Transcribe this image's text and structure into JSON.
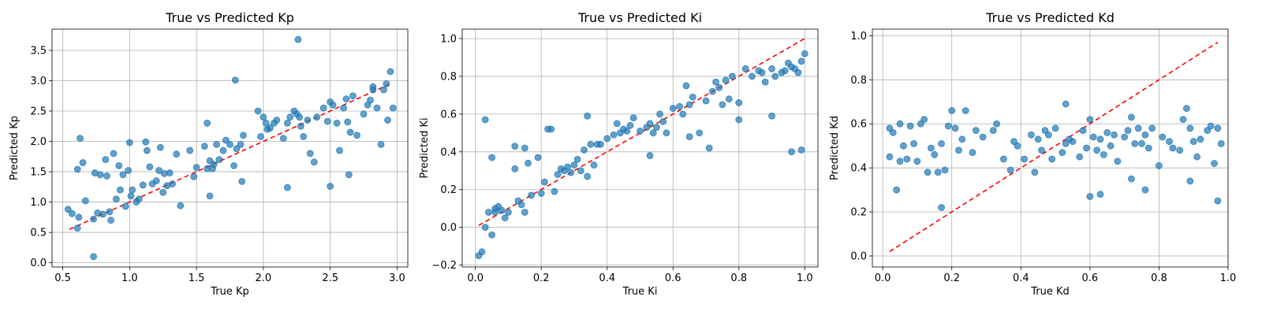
{
  "chart_data": [
    {
      "type": "scatter",
      "title": "True vs Predicted Kp",
      "xlabel": "True Kp",
      "ylabel": "Predicted Kp",
      "xlim": [
        0.42,
        3.08
      ],
      "ylim": [
        -0.07,
        3.85
      ],
      "xticks": [
        0.5,
        1.0,
        1.5,
        2.0,
        2.5,
        3.0
      ],
      "xtick_labels": [
        "0.5",
        "1.0",
        "1.5",
        "2.0",
        "2.5",
        "3.0"
      ],
      "yticks": [
        0.0,
        0.5,
        1.0,
        1.5,
        2.0,
        2.5,
        3.0,
        3.5
      ],
      "ytick_labels": [
        "0.0",
        "0.5",
        "1.0",
        "1.5",
        "2.0",
        "2.5",
        "3.0",
        "3.5"
      ],
      "grid": true,
      "reference_line": [
        [
          0.55,
          0.55
        ],
        [
          2.95,
          2.95
        ]
      ],
      "x": [
        0.54,
        0.57,
        0.61,
        0.62,
        0.63,
        0.65,
        0.67,
        0.73,
        0.74,
        0.76,
        0.78,
        0.8,
        0.82,
        0.83,
        0.85,
        0.86,
        0.88,
        0.9,
        0.92,
        0.93,
        0.95,
        0.97,
        0.99,
        1.0,
        1.01,
        1.02,
        1.05,
        1.07,
        1.1,
        1.12,
        1.13,
        1.15,
        1.17,
        1.2,
        1.22,
        1.23,
        1.25,
        1.26,
        1.28,
        1.3,
        1.32,
        1.35,
        1.38,
        1.45,
        1.48,
        1.5,
        1.56,
        1.58,
        1.6,
        1.62,
        1.63,
        1.65,
        1.67,
        1.7,
        1.72,
        1.75,
        1.78,
        1.8,
        1.83,
        1.85,
        1.96,
        1.98,
        2.0,
        2.02,
        2.03,
        2.05,
        2.08,
        2.1,
        2.15,
        2.18,
        2.2,
        2.23,
        2.25,
        2.27,
        2.28,
        2.3,
        2.33,
        2.35,
        2.38,
        2.4,
        2.45,
        2.48,
        2.5,
        2.52,
        2.55,
        2.57,
        2.6,
        2.62,
        2.63,
        2.65,
        2.67,
        2.7,
        2.75,
        2.78,
        2.8,
        2.82,
        2.85,
        2.88,
        2.9,
        2.92,
        2.93,
        2.95,
        2.97,
        2.82,
        2.64,
        1.6,
        2.26,
        1.79,
        0.61,
        1.58,
        2.5,
        2.18,
        1.84,
        0.73
      ],
      "y": [
        0.88,
        0.81,
        0.57,
        0.75,
        2.05,
        1.65,
        1.02,
        0.72,
        1.48,
        0.82,
        1.45,
        0.8,
        1.7,
        1.43,
        0.84,
        0.7,
        1.8,
        1.05,
        1.6,
        1.2,
        1.45,
        0.93,
        1.52,
        1.98,
        1.1,
        1.2,
        1.0,
        1.05,
        1.28,
        1.99,
        1.85,
        1.58,
        1.3,
        1.35,
        1.52,
        1.9,
        1.16,
        1.47,
        1.27,
        1.48,
        1.3,
        1.79,
        0.94,
        1.85,
        1.42,
        1.57,
        1.92,
        2.3,
        1.68,
        1.55,
        1.62,
        1.95,
        1.7,
        1.85,
        2.02,
        1.95,
        1.6,
        1.88,
        1.95,
        2.1,
        2.5,
        2.08,
        2.4,
        2.3,
        2.2,
        2.22,
        2.3,
        2.35,
        2.05,
        2.3,
        2.4,
        2.5,
        2.45,
        2.4,
        2.25,
        2.08,
        2.35,
        1.8,
        1.66,
        2.4,
        2.55,
        2.33,
        2.65,
        2.6,
        2.3,
        1.85,
        2.55,
        2.7,
        2.32,
        2.15,
        2.75,
        2.1,
        2.45,
        2.6,
        2.68,
        2.9,
        2.55,
        1.95,
        2.85,
        2.95,
        2.35,
        3.15,
        2.55,
        2.85,
        1.45,
        1.1,
        3.68,
        3.01,
        1.54,
        1.55,
        1.26,
        1.24,
        1.34,
        0.1
      ]
    },
    {
      "type": "scatter",
      "title": "True vs Predicted Ki",
      "xlabel": "True Ki",
      "ylabel": "Predicted Ki",
      "xlim": [
        -0.04,
        1.04
      ],
      "ylim": [
        -0.21,
        1.05
      ],
      "xticks": [
        0.0,
        0.2,
        0.4,
        0.6,
        0.8,
        1.0
      ],
      "xtick_labels": [
        "0.0",
        "0.2",
        "0.4",
        "0.6",
        "0.8",
        "1.0"
      ],
      "yticks": [
        -0.2,
        0.0,
        0.2,
        0.4,
        0.6,
        0.8,
        1.0
      ],
      "ytick_labels": [
        "−0.2",
        "0.0",
        "0.2",
        "0.4",
        "0.6",
        "0.8",
        "1.0"
      ],
      "grid": true,
      "reference_line": [
        [
          0.01,
          0.01
        ],
        [
          1.0,
          1.0
        ]
      ],
      "x": [
        0.01,
        0.02,
        0.03,
        0.04,
        0.05,
        0.06,
        0.06,
        0.07,
        0.08,
        0.09,
        0.1,
        0.12,
        0.13,
        0.14,
        0.15,
        0.16,
        0.17,
        0.19,
        0.2,
        0.21,
        0.22,
        0.24,
        0.25,
        0.26,
        0.27,
        0.28,
        0.29,
        0.3,
        0.31,
        0.32,
        0.33,
        0.34,
        0.35,
        0.36,
        0.37,
        0.38,
        0.4,
        0.42,
        0.43,
        0.44,
        0.45,
        0.46,
        0.47,
        0.48,
        0.5,
        0.52,
        0.53,
        0.54,
        0.55,
        0.56,
        0.57,
        0.58,
        0.6,
        0.62,
        0.63,
        0.64,
        0.65,
        0.66,
        0.68,
        0.7,
        0.72,
        0.73,
        0.74,
        0.75,
        0.76,
        0.77,
        0.78,
        0.8,
        0.82,
        0.84,
        0.86,
        0.87,
        0.88,
        0.9,
        0.91,
        0.93,
        0.94,
        0.95,
        0.96,
        0.97,
        0.98,
        0.99,
        1.0,
        0.96,
        0.99,
        0.9,
        0.03,
        0.05,
        0.12,
        0.15,
        0.23,
        0.34,
        0.53,
        0.65,
        0.71,
        0.8
      ],
      "y": [
        -0.15,
        -0.13,
        0.0,
        0.08,
        -0.04,
        0.08,
        0.1,
        0.11,
        0.09,
        0.05,
        0.08,
        0.31,
        0.14,
        0.12,
        0.08,
        0.34,
        0.17,
        0.37,
        0.18,
        0.24,
        0.52,
        0.19,
        0.28,
        0.31,
        0.3,
        0.32,
        0.29,
        0.33,
        0.36,
        0.3,
        0.41,
        0.27,
        0.44,
        0.33,
        0.44,
        0.44,
        0.47,
        0.49,
        0.55,
        0.5,
        0.52,
        0.51,
        0.54,
        0.58,
        0.51,
        0.53,
        0.55,
        0.5,
        0.53,
        0.6,
        0.56,
        0.5,
        0.63,
        0.64,
        0.6,
        0.75,
        0.65,
        0.69,
        0.5,
        0.67,
        0.72,
        0.77,
        0.74,
        0.65,
        0.78,
        0.68,
        0.8,
        0.66,
        0.84,
        0.8,
        0.83,
        0.82,
        0.77,
        0.84,
        0.8,
        0.82,
        0.83,
        0.87,
        0.85,
        0.84,
        0.82,
        0.88,
        0.92,
        0.4,
        0.41,
        0.59,
        0.57,
        0.37,
        0.43,
        0.42,
        0.52,
        0.59,
        0.38,
        0.48,
        0.42,
        0.57
      ]
    },
    {
      "type": "scatter",
      "title": "True vs Predicted Kd",
      "xlabel": "True Kd",
      "ylabel": "Predicted Kd",
      "xlim": [
        -0.03,
        1.0
      ],
      "ylim": [
        -0.05,
        1.03
      ],
      "xticks": [
        0.0,
        0.2,
        0.4,
        0.6,
        0.8,
        1.0
      ],
      "xtick_labels": [
        "0.0",
        "0.2",
        "0.4",
        "0.6",
        "0.8",
        "1.0"
      ],
      "yticks": [
        0.0,
        0.2,
        0.4,
        0.6,
        0.8,
        1.0
      ],
      "ytick_labels": [
        "0.0",
        "0.2",
        "0.4",
        "0.6",
        "0.8",
        "1.0"
      ],
      "grid": true,
      "reference_line": [
        [
          0.02,
          0.02
        ],
        [
          0.97,
          0.97
        ]
      ],
      "x": [
        0.02,
        0.02,
        0.03,
        0.04,
        0.05,
        0.05,
        0.06,
        0.07,
        0.08,
        0.09,
        0.1,
        0.11,
        0.12,
        0.14,
        0.15,
        0.16,
        0.17,
        0.18,
        0.19,
        0.2,
        0.21,
        0.22,
        0.23,
        0.24,
        0.26,
        0.27,
        0.29,
        0.32,
        0.33,
        0.35,
        0.37,
        0.38,
        0.39,
        0.41,
        0.43,
        0.45,
        0.46,
        0.47,
        0.48,
        0.49,
        0.5,
        0.52,
        0.53,
        0.54,
        0.55,
        0.57,
        0.58,
        0.59,
        0.6,
        0.61,
        0.62,
        0.63,
        0.64,
        0.65,
        0.66,
        0.67,
        0.68,
        0.7,
        0.71,
        0.72,
        0.73,
        0.74,
        0.75,
        0.76,
        0.77,
        0.78,
        0.8,
        0.81,
        0.83,
        0.84,
        0.86,
        0.87,
        0.88,
        0.89,
        0.9,
        0.91,
        0.92,
        0.94,
        0.95,
        0.96,
        0.97,
        0.98,
        0.17,
        0.63,
        0.6,
        0.76,
        0.89,
        0.97,
        0.44,
        0.53,
        0.72,
        0.13
      ],
      "y": [
        0.45,
        0.58,
        0.56,
        0.3,
        0.6,
        0.43,
        0.5,
        0.44,
        0.59,
        0.51,
        0.43,
        0.6,
        0.62,
        0.49,
        0.46,
        0.38,
        0.51,
        0.39,
        0.59,
        0.66,
        0.58,
        0.48,
        0.53,
        0.66,
        0.47,
        0.57,
        0.54,
        0.57,
        0.6,
        0.44,
        0.39,
        0.52,
        0.5,
        0.44,
        0.55,
        0.53,
        0.48,
        0.57,
        0.55,
        0.44,
        0.58,
        0.47,
        0.51,
        0.53,
        0.52,
        0.45,
        0.57,
        0.49,
        0.62,
        0.54,
        0.48,
        0.53,
        0.46,
        0.56,
        0.5,
        0.55,
        0.43,
        0.54,
        0.57,
        0.63,
        0.51,
        0.58,
        0.51,
        0.55,
        0.49,
        0.58,
        0.41,
        0.54,
        0.52,
        0.49,
        0.48,
        0.62,
        0.67,
        0.58,
        0.52,
        0.45,
        0.53,
        0.57,
        0.59,
        0.42,
        0.58,
        0.51,
        0.22,
        0.28,
        0.27,
        0.3,
        0.34,
        0.25,
        0.38,
        0.69,
        0.35,
        0.38
      ]
    }
  ]
}
